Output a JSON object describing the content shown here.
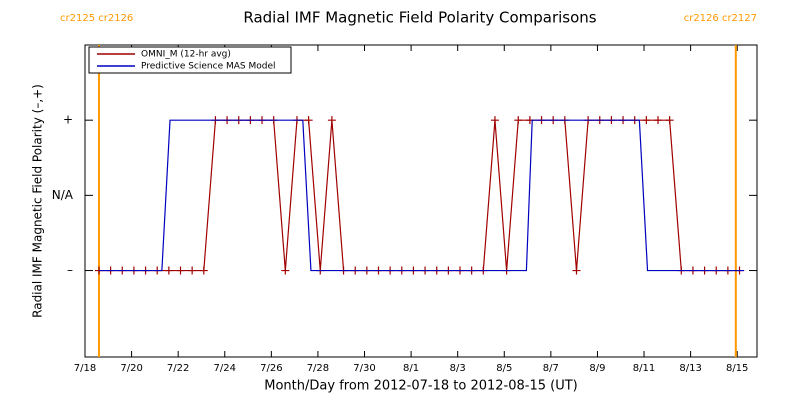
{
  "chart_data": {
    "type": "line",
    "title": "Radial IMF Magnetic Field Polarity Comparisons",
    "xlabel": "Month/Day from 2012-07-18 to 2012-08-15 (UT)",
    "ylabel": "Radial IMF Magnetic Field Polarity (–,+)",
    "xlim": [
      0,
      28.85
    ],
    "xticks": [
      {
        "value": 0,
        "label": "7/18"
      },
      {
        "value": 2,
        "label": "7/20"
      },
      {
        "value": 4,
        "label": "7/22"
      },
      {
        "value": 6,
        "label": "7/24"
      },
      {
        "value": 8,
        "label": "7/26"
      },
      {
        "value": 10,
        "label": "7/28"
      },
      {
        "value": 12,
        "label": "7/30"
      },
      {
        "value": 14,
        "label": "8/1"
      },
      {
        "value": 16,
        "label": "8/3"
      },
      {
        "value": 18,
        "label": "8/5"
      },
      {
        "value": 20,
        "label": "8/7"
      },
      {
        "value": 22,
        "label": "8/9"
      },
      {
        "value": 24,
        "label": "8/11"
      },
      {
        "value": 26,
        "label": "8/13"
      },
      {
        "value": 28,
        "label": "8/15"
      }
    ],
    "ylim": [
      -2.15,
      2
    ],
    "yticks": [
      {
        "value": -1,
        "label": "–"
      },
      {
        "value": 0,
        "label": "N/A"
      },
      {
        "value": 1,
        "label": "+"
      }
    ],
    "legend": "top-left",
    "series": [
      {
        "name": "OMNI_M (12-hr avg)",
        "color": "#a00000",
        "markers": true,
        "x": [
          0.6,
          1.1,
          1.6,
          2.1,
          2.6,
          3.1,
          3.6,
          4.1,
          4.6,
          5.1,
          5.6,
          6.1,
          6.6,
          7.1,
          7.6,
          8.1,
          8.6,
          9.1,
          9.6,
          10.1,
          10.6,
          11.1,
          11.6,
          12.1,
          12.6,
          13.1,
          13.6,
          14.1,
          14.6,
          15.1,
          15.6,
          16.1,
          16.6,
          17.1,
          17.6,
          18.1,
          18.6,
          19.1,
          19.6,
          20.1,
          20.6,
          21.1,
          21.6,
          22.1,
          22.6,
          23.1,
          23.6,
          24.1,
          24.6,
          25.1,
          25.6,
          26.1,
          26.6,
          27.1,
          27.6,
          28.1
        ],
        "values": [
          -1,
          -1,
          -1,
          -1,
          -1,
          -1,
          -1,
          -1,
          -1,
          -1,
          1,
          1,
          1,
          1,
          1,
          1,
          -1,
          1,
          1,
          -1,
          1,
          -1,
          -1,
          -1,
          -1,
          -1,
          -1,
          -1,
          -1,
          -1,
          -1,
          -1,
          -1,
          -1,
          1,
          -1,
          1,
          1,
          1,
          1,
          1,
          -1,
          1,
          1,
          1,
          1,
          1,
          1,
          1,
          1,
          -1,
          -1,
          -1,
          -1,
          -1,
          -1
        ]
      },
      {
        "name": "Predictive Science MAS Model",
        "color": "#0000c0",
        "markers": false,
        "x": [
          0.6,
          3.3,
          3.65,
          9.35,
          9.7,
          18.95,
          19.2,
          23.8,
          24.15,
          28.3
        ],
        "values": [
          -1,
          -1,
          1,
          1,
          -1,
          -1,
          1,
          1,
          -1,
          -1
        ]
      }
    ],
    "boundaries": {
      "color": "#ff9900",
      "x": [
        0.6,
        27.94
      ],
      "labels": [
        "cr2125 cr2126",
        "cr2126 cr2127"
      ]
    }
  }
}
